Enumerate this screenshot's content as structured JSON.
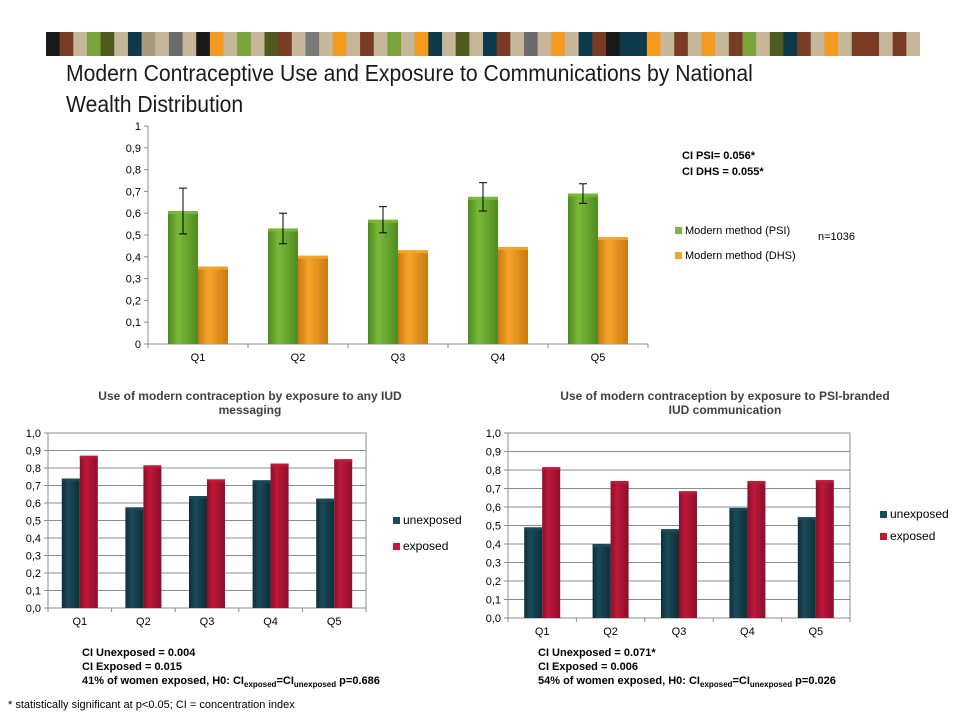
{
  "header": {
    "stripe_colors": [
      "#1a1a1a",
      "#7a3b25",
      "#c6b79a",
      "#7aa33a",
      "#4e5a1e",
      "#c6b79a",
      "#0d3a4a",
      "#a89a7a",
      "#c6b79a",
      "#6b6b6b",
      "#c6b79a",
      "#1a1a1a",
      "#f39a1f",
      "#c6b79a",
      "#7aa33a",
      "#c6b79a",
      "#4e5a1e",
      "#7a3b25",
      "#c6b79a",
      "#7a7a7a",
      "#c6b79a",
      "#f39a1f",
      "#c6b79a",
      "#7a3b25",
      "#c6b79a",
      "#7aa33a",
      "#c6b79a",
      "#f39a1f",
      "#0d3a4a",
      "#c6b79a",
      "#4e5a1e",
      "#c6b79a",
      "#0d3a4a",
      "#7a3b25",
      "#c6b79a",
      "#6b6b6b",
      "#c6b79a",
      "#f39a1f",
      "#c6b79a",
      "#0d3a4a",
      "#7a3b25",
      "#1a1a1a",
      "#0d3a4a",
      "#0d3a4a",
      "#f39a1f",
      "#c6b79a",
      "#7a3b25",
      "#c6b79a",
      "#f39a1f",
      "#c6b79a",
      "#7a3b25",
      "#7aa33a",
      "#c6b79a",
      "#4e5a1e",
      "#0d3a4a",
      "#7a3b25",
      "#c6b79a",
      "#f39a1f",
      "#c6b79a",
      "#7a3b25",
      "#7a3b25",
      "#c6b79a",
      "#7a3b25",
      "#c6b79a"
    ],
    "title": "Modern Contraceptive Use and Exposure to Communications by National Wealth Distribution"
  },
  "colors": {
    "green": "#7aba3a",
    "green_dark": "#4f8a1f",
    "orange": "#f7a529",
    "orange_dark": "#c97a10",
    "teal": "#1b4b5a",
    "teal_dark": "#0e2e38",
    "red": "#c0183a",
    "red_dark": "#8a0f28"
  },
  "chart_data": [
    {
      "type": "bar",
      "title": "",
      "categories": [
        "Q1",
        "Q2",
        "Q3",
        "Q4",
        "Q5"
      ],
      "series": [
        {
          "name": "Modern method (PSI)",
          "values": [
            0.61,
            0.53,
            0.57,
            0.675,
            0.69
          ],
          "error": [
            0.105,
            0.07,
            0.06,
            0.065,
            0.045
          ],
          "color": "green"
        },
        {
          "name": "Modern method (DHS)",
          "values": [
            0.355,
            0.405,
            0.43,
            0.445,
            0.49
          ],
          "color": "orange"
        }
      ],
      "ylim": [
        0,
        1
      ],
      "yticks": [
        "0",
        "0,1",
        "0,2",
        "0,3",
        "0,4",
        "0,5",
        "0,6",
        "0,7",
        "0,8",
        "0,9",
        "1"
      ],
      "grid": false,
      "legend": "right",
      "annotations": [
        "CI PSI= 0.056*",
        "CI DHS = 0.055*",
        "n=1036"
      ]
    },
    {
      "type": "bar",
      "title": "Use of modern contraception  by exposure to any IUD messaging",
      "title_lines": [
        "Use of modern contraception  by exposure to any IUD",
        "messaging"
      ],
      "categories": [
        "Q1",
        "Q2",
        "Q3",
        "Q4",
        "Q5"
      ],
      "series": [
        {
          "name": "unexposed",
          "values": [
            0.74,
            0.575,
            0.64,
            0.73,
            0.625
          ],
          "color": "teal"
        },
        {
          "name": "exposed",
          "values": [
            0.87,
            0.815,
            0.735,
            0.825,
            0.85
          ],
          "color": "red"
        }
      ],
      "ylim": [
        0,
        1
      ],
      "yticks": [
        "0,0",
        "0,1",
        "0,2",
        "0,3",
        "0,4",
        "0,5",
        "0,6",
        "0,7",
        "0,8",
        "0,9",
        "1,0"
      ],
      "grid": true,
      "legend": "right"
    },
    {
      "type": "bar",
      "title": "Use of modern contraception  by exposure to PSI-branded IUD communication",
      "title_lines": [
        "Use of modern contraception  by exposure to PSI-branded",
        "IUD communication"
      ],
      "categories": [
        "Q1",
        "Q2",
        "Q3",
        "Q4",
        "Q5"
      ],
      "series": [
        {
          "name": "unexposed",
          "values": [
            0.49,
            0.4,
            0.48,
            0.595,
            0.545
          ],
          "color": "teal"
        },
        {
          "name": "exposed",
          "values": [
            0.815,
            0.74,
            0.685,
            0.74,
            0.745
          ],
          "color": "red"
        }
      ],
      "ylim": [
        0,
        1
      ],
      "yticks": [
        "0,0",
        "0,1",
        "0,2",
        "0,3",
        "0,4",
        "0,5",
        "0,6",
        "0,7",
        "0,8",
        "0,9",
        "1,0"
      ],
      "grid": true,
      "legend": "right"
    }
  ],
  "notes": {
    "top_ci_psi": "CI PSI= 0.056*",
    "top_ci_dhs": "CI DHS = 0.055*",
    "top_n": "n=1036",
    "left_line1": "CI Unexposed = 0.004",
    "left_line2": "CI Exposed = 0.015",
    "left_line3_a": "41% of women exposed, H0: CI",
    "left_line3_sub1": "exposed",
    "left_line3_eq": "=CI",
    "left_line3_sub2": "unexposed",
    "left_line3_b": " p=0.686",
    "right_line1": "CI Unexposed = 0.071*",
    "right_line2": "CI Exposed = 0.006",
    "right_line3_a": "54% of women exposed, H0: CI",
    "right_line3_sub1": "exposed",
    "right_line3_eq": "=CI",
    "right_line3_sub2": "unexposed",
    "right_line3_b": " p=0.026"
  },
  "footnote": "* statistically significant at p<0.05; CI = concentration index"
}
